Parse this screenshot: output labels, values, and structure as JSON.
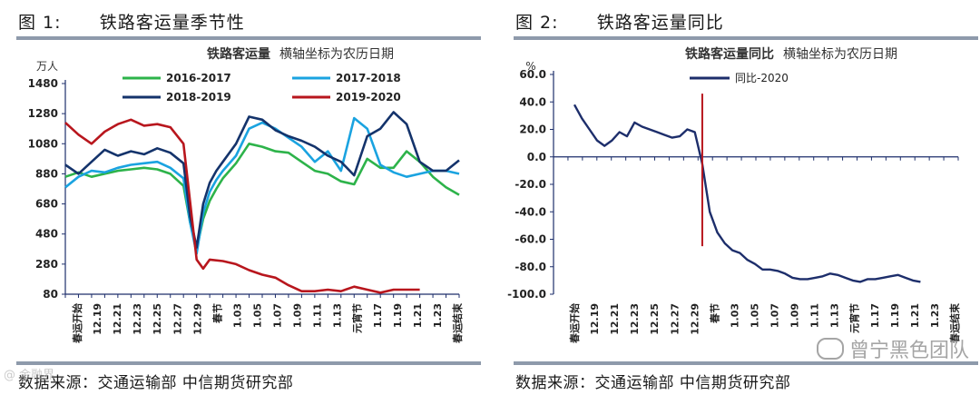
{
  "figures": [
    {
      "label": "图 1:",
      "title": "铁路客运量季节性",
      "source": "数据来源：交通运输部  中信期货研究部"
    },
    {
      "label": "图 2:",
      "title": "铁路客运量同比",
      "source": "数据来源：交通运输部  中信期货研究部"
    }
  ],
  "watermark": "曾宁黑色团队",
  "watermark_left": "@ 金融界",
  "chart_data": [
    {
      "type": "line",
      "title": "铁路客运量",
      "subtitle": "横轴坐标为农历日期",
      "ylabel": "万人",
      "ylim": [
        80,
        1480
      ],
      "yticks": [
        80,
        280,
        480,
        680,
        880,
        1080,
        1280,
        1480
      ],
      "ytick_labels": [
        "80",
        "280",
        "480",
        "680",
        "880",
        "1080",
        "1280",
        "1480"
      ],
      "xlabels": [
        "春运开始",
        "12.19",
        "12.21",
        "12.23",
        "12.25",
        "12.27",
        "12.29",
        "春节",
        "1.03",
        "1.05",
        "1.07",
        "1.09",
        "1.11",
        "1.13",
        "元宵节",
        "1.17",
        "1.19",
        "1.21",
        "1.23",
        "春运结束"
      ],
      "x_domain": [
        0,
        60
      ],
      "colors": {
        "2016-2017": "#2db34a",
        "2017-2018": "#1aa3e0",
        "2018-2019": "#14336b",
        "2019-2020": "#b8161d"
      },
      "legend_order": [
        "2016-2017",
        "2017-2018",
        "2018-2019",
        "2019-2020"
      ],
      "series": [
        {
          "name": "2016-2017",
          "x": [
            0,
            2,
            4,
            6,
            8,
            10,
            12,
            14,
            16,
            18,
            19,
            20,
            21,
            22,
            23,
            24,
            26,
            28,
            30,
            32,
            34,
            36,
            38,
            40,
            42,
            44,
            46,
            48,
            50,
            52,
            54,
            56,
            58,
            60
          ],
          "y": [
            860,
            890,
            860,
            880,
            900,
            910,
            920,
            910,
            880,
            800,
            560,
            380,
            580,
            700,
            780,
            850,
            950,
            1080,
            1060,
            1030,
            1020,
            960,
            900,
            880,
            830,
            810,
            980,
            920,
            920,
            1030,
            960,
            860,
            790,
            740
          ]
        },
        {
          "name": "2017-2018",
          "x": [
            0,
            2,
            4,
            6,
            8,
            10,
            12,
            14,
            16,
            18,
            19,
            20,
            21,
            22,
            23,
            24,
            26,
            28,
            30,
            32,
            34,
            36,
            38,
            40,
            42,
            44,
            46,
            48,
            50,
            52,
            54,
            56,
            58,
            60
          ],
          "y": [
            790,
            860,
            900,
            890,
            920,
            940,
            950,
            960,
            920,
            850,
            560,
            350,
            620,
            760,
            840,
            900,
            1000,
            1180,
            1220,
            1180,
            1120,
            1060,
            960,
            1030,
            900,
            1250,
            1180,
            940,
            890,
            860,
            880,
            900,
            900,
            880
          ]
        },
        {
          "name": "2018-2019",
          "x": [
            0,
            2,
            4,
            6,
            8,
            10,
            12,
            14,
            16,
            18,
            19,
            20,
            21,
            22,
            23,
            24,
            26,
            28,
            30,
            32,
            34,
            36,
            38,
            40,
            42,
            44,
            46,
            48,
            50,
            52,
            54,
            56,
            58,
            60
          ],
          "y": [
            940,
            880,
            960,
            1040,
            1000,
            1030,
            1010,
            1050,
            1020,
            950,
            600,
            390,
            680,
            820,
            900,
            960,
            1080,
            1260,
            1240,
            1170,
            1130,
            1100,
            1060,
            1000,
            960,
            870,
            1130,
            1180,
            1290,
            1210,
            960,
            900,
            900,
            970
          ]
        },
        {
          "name": "2019-2020",
          "x": [
            0,
            2,
            4,
            6,
            8,
            10,
            12,
            14,
            16,
            18,
            19,
            20,
            21,
            22,
            24,
            26,
            28,
            30,
            32,
            34,
            36,
            38,
            40,
            42,
            44,
            46,
            48,
            50,
            52,
            54
          ],
          "y": [
            1220,
            1140,
            1080,
            1160,
            1210,
            1240,
            1200,
            1210,
            1190,
            1080,
            700,
            310,
            250,
            310,
            300,
            280,
            240,
            210,
            190,
            140,
            100,
            100,
            110,
            100,
            130,
            110,
            90,
            110,
            110,
            110
          ]
        }
      ]
    },
    {
      "type": "line",
      "title": "铁路客运量同比",
      "subtitle": "横轴坐标为农历日期",
      "ylabel": "%",
      "ylim": [
        -100,
        60
      ],
      "yticks": [
        -100,
        -80,
        -60,
        -40,
        -20,
        0,
        20,
        40,
        60
      ],
      "ytick_labels": [
        "-100.0",
        "-80.0",
        "-60.0",
        "-40.0",
        "-20.0",
        "0.0",
        "20.0",
        "40.0",
        "60.0"
      ],
      "xlabels": [
        "春运开始",
        "12.19",
        "12.21",
        "12.23",
        "12.25",
        "12.27",
        "12.29",
        "春节",
        "1.03",
        "1.05",
        "1.07",
        "1.09",
        "1.11",
        "1.13",
        "元宵节",
        "1.17",
        "1.19",
        "1.21",
        "1.23",
        "春运结束"
      ],
      "x_domain": [
        0,
        56
      ],
      "marker_x": 17,
      "marker_color": "#b8161d",
      "series": [
        {
          "name": "同比-2020",
          "color": "#1d2e6b",
          "x": [
            0,
            1,
            2,
            3,
            4,
            5,
            6,
            7,
            8,
            9,
            10,
            11,
            12,
            13,
            14,
            15,
            16,
            17,
            18,
            19,
            20,
            21,
            22,
            23,
            24,
            25,
            26,
            27,
            28,
            29,
            30,
            31,
            32,
            33,
            34,
            35,
            36,
            37,
            38,
            39,
            40,
            41,
            42,
            43,
            44,
            45,
            46
          ],
          "y": [
            38,
            28,
            20,
            12,
            8,
            12,
            18,
            15,
            25,
            22,
            20,
            18,
            16,
            14,
            15,
            20,
            18,
            -5,
            -40,
            -55,
            -63,
            -68,
            -70,
            -75,
            -78,
            -82,
            -82,
            -83,
            -85,
            -88,
            -89,
            -89,
            -88,
            -87,
            -85,
            -86,
            -88,
            -90,
            -91,
            -89,
            -89,
            -88,
            -87,
            -86,
            -88,
            -90,
            -91
          ]
        }
      ]
    }
  ]
}
